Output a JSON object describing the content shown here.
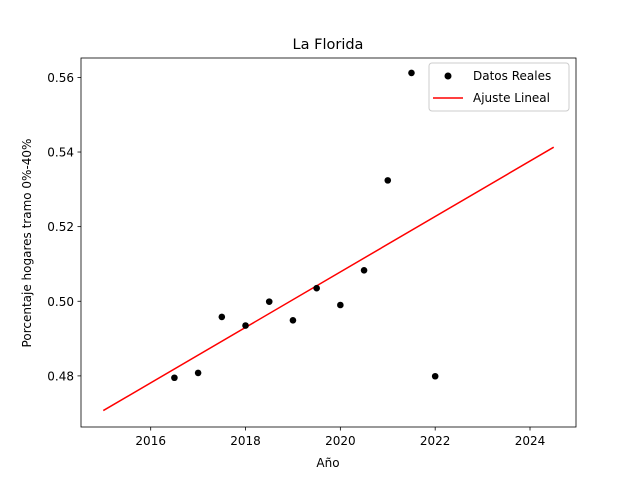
{
  "chart_data": {
    "type": "scatter",
    "title": "La Florida",
    "xlabel": "Año",
    "ylabel": "Porcentaje hogares tramo 0%-40%",
    "xlim": [
      2014.53,
      2024.97
    ],
    "ylim": [
      0.4663,
      0.5652
    ],
    "xticks": [
      2016,
      2018,
      2020,
      2022,
      2024
    ],
    "yticks": [
      0.48,
      0.5,
      0.52,
      0.54,
      0.56
    ],
    "ytick_labels": [
      "0.48",
      "0.50",
      "0.52",
      "0.54",
      "0.56"
    ],
    "grid": false,
    "legend_position": "upper right",
    "series": [
      {
        "name": "Datos Reales",
        "kind": "scatter",
        "color": "#000000",
        "x": [
          2016.5,
          2017.0,
          2017.5,
          2018.0,
          2018.5,
          2019.0,
          2019.5,
          2020.0,
          2020.5,
          2021.0,
          2021.5,
          2022.0
        ],
        "y": [
          0.4795,
          0.4808,
          0.4958,
          0.4935,
          0.4999,
          0.4949,
          0.5035,
          0.499,
          0.5083,
          0.5324,
          0.5612,
          0.4799
        ]
      },
      {
        "name": "Ajuste Lineal",
        "kind": "line",
        "color": "#ff0000",
        "x": [
          2015.0,
          2024.5
        ],
        "y": [
          0.4707,
          0.5413
        ]
      }
    ]
  }
}
